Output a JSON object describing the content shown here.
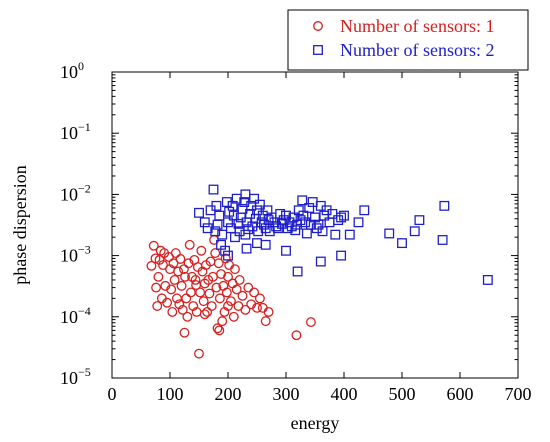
{
  "chart_data": {
    "type": "scatter",
    "xlabel": "energy",
    "ylabel": "phase dispersion",
    "xlim": [
      0,
      700
    ],
    "ylim": [
      1e-05,
      1
    ],
    "y_scale": "log",
    "x_ticks": [
      "0",
      "100",
      "200",
      "300",
      "400",
      "500",
      "600",
      "700"
    ],
    "x_tick_values": [
      0,
      100,
      200,
      300,
      400,
      500,
      600,
      700
    ],
    "y_ticks": [
      {
        "base": "10",
        "exp": "0",
        "value": 1
      },
      {
        "base": "10",
        "exp": "−1",
        "value": 0.1
      },
      {
        "base": "10",
        "exp": "−2",
        "value": 0.01
      },
      {
        "base": "10",
        "exp": "−3",
        "value": 0.001
      },
      {
        "base": "10",
        "exp": "−4",
        "value": 0.0001
      },
      {
        "base": "10",
        "exp": "−5",
        "value": 1e-05
      }
    ],
    "grid": false,
    "legend_position": "top-right",
    "series": [
      {
        "name": "Number of sensors: 1",
        "color": "#d62020",
        "marker": "circle",
        "points": [
          [
            68,
            0.00068
          ],
          [
            72,
            0.00145
          ],
          [
            75,
            0.0009
          ],
          [
            76,
            0.0003
          ],
          [
            78,
            0.00015
          ],
          [
            80,
            0.00045
          ],
          [
            82,
            0.00085
          ],
          [
            84,
            0.0012
          ],
          [
            86,
            0.0002
          ],
          [
            88,
            0.0007
          ],
          [
            90,
            0.0011
          ],
          [
            92,
            0.00032
          ],
          [
            95,
            0.00017
          ],
          [
            98,
            0.00095
          ],
          [
            100,
            0.0006
          ],
          [
            102,
            0.00028
          ],
          [
            104,
            0.00012
          ],
          [
            106,
            0.00075
          ],
          [
            108,
            0.0004
          ],
          [
            110,
            0.0011
          ],
          [
            112,
            0.0002
          ],
          [
            114,
            0.00055
          ],
          [
            116,
            0.00016
          ],
          [
            118,
            0.00088
          ],
          [
            120,
            0.00032
          ],
          [
            122,
            0.00013
          ],
          [
            124,
            0.0006
          ],
          [
            126,
            0.00045
          ],
          [
            128,
            0.0002
          ],
          [
            130,
            0.0001
          ],
          [
            125,
            5.5e-05
          ],
          [
            132,
            0.00075
          ],
          [
            134,
            0.0015
          ],
          [
            136,
            0.00025
          ],
          [
            138,
            0.00045
          ],
          [
            140,
            0.00015
          ],
          [
            142,
            0.00085
          ],
          [
            144,
            0.0004
          ],
          [
            146,
            0.00012
          ],
          [
            148,
            0.00065
          ],
          [
            150,
            2.5e-05
          ],
          [
            152,
            0.00025
          ],
          [
            154,
            0.0012
          ],
          [
            156,
            0.00055
          ],
          [
            158,
            0.00018
          ],
          [
            160,
            0.00035
          ],
          [
            162,
            0.0007
          ],
          [
            164,
            0.00012
          ],
          [
            166,
            0.0004
          ],
          [
            168,
            0.00024
          ],
          [
            170,
            0.0008
          ],
          [
            172,
            0.00015
          ],
          [
            174,
            0.00045
          ],
          [
            176,
            0.0018
          ],
          [
            178,
            0.0011
          ],
          [
            180,
            0.0003
          ],
          [
            182,
            6.5e-05
          ],
          [
            184,
            0.00075
          ],
          [
            186,
            0.0002
          ],
          [
            188,
            0.0005
          ],
          [
            190,
            8.5e-05
          ],
          [
            192,
            0.00032
          ],
          [
            194,
            0.00012
          ],
          [
            196,
            0.0009
          ],
          [
            198,
            0.00025
          ],
          [
            200,
            0.00045
          ],
          [
            202,
            0.0007
          ],
          [
            205,
            0.00018
          ],
          [
            208,
            0.00035
          ],
          [
            210,
            0.0001
          ],
          [
            212,
            0.0006
          ],
          [
            215,
            0.00028
          ],
          [
            218,
            0.00015
          ],
          [
            220,
            0.0004
          ],
          [
            225,
            0.00022
          ],
          [
            230,
            0.00013
          ],
          [
            235,
            0.0003
          ],
          [
            240,
            0.00016
          ],
          [
            245,
            0.00025
          ],
          [
            250,
            0.00014
          ],
          [
            255,
            0.0002
          ],
          [
            260,
            0.00014
          ],
          [
            265,
            8.5e-05
          ],
          [
            270,
            0.00012
          ],
          [
            318,
            5e-05
          ],
          [
            343,
            8.2e-05
          ],
          [
            160,
            0.00011
          ],
          [
            185,
            6e-05
          ],
          [
            200,
            0.00015
          ],
          [
            145,
            0.00033
          ]
        ]
      },
      {
        "name": "Number of sensors: 2",
        "color": "#2020c8",
        "marker": "square",
        "points": [
          [
            150,
            0.005
          ],
          [
            160,
            0.0035
          ],
          [
            165,
            0.0028
          ],
          [
            170,
            0.0055
          ],
          [
            175,
            0.012
          ],
          [
            178,
            0.0025
          ],
          [
            180,
            0.0065
          ],
          [
            182,
            0.0032
          ],
          [
            185,
            0.0045
          ],
          [
            188,
            0.0015
          ],
          [
            190,
            0.0022
          ],
          [
            195,
            0.0012
          ],
          [
            198,
            0.0075
          ],
          [
            200,
            0.0035
          ],
          [
            202,
            0.0052
          ],
          [
            205,
            0.0028
          ],
          [
            208,
            0.0065
          ],
          [
            210,
            0.0045
          ],
          [
            212,
            0.002
          ],
          [
            215,
            0.0085
          ],
          [
            218,
            0.0033
          ],
          [
            220,
            0.0025
          ],
          [
            222,
            0.0042
          ],
          [
            225,
            0.0058
          ],
          [
            228,
            0.0075
          ],
          [
            230,
            0.01
          ],
          [
            232,
            0.0035
          ],
          [
            235,
            0.0027
          ],
          [
            238,
            0.0048
          ],
          [
            240,
            0.0065
          ],
          [
            242,
            0.003
          ],
          [
            245,
            0.0085
          ],
          [
            248,
            0.004
          ],
          [
            250,
            0.0055
          ],
          [
            252,
            0.0025
          ],
          [
            255,
            0.0068
          ],
          [
            258,
            0.0035
          ],
          [
            260,
            0.0045
          ],
          [
            262,
            0.0032
          ],
          [
            265,
            0.0028
          ],
          [
            268,
            0.0055
          ],
          [
            270,
            0.0038
          ],
          [
            272,
            0.0025
          ],
          [
            275,
            0.0042
          ],
          [
            280,
            0.0035
          ],
          [
            283,
            0.003
          ],
          [
            286,
            0.0028
          ],
          [
            290,
            0.0048
          ],
          [
            293,
            0.0033
          ],
          [
            296,
            0.0038
          ],
          [
            300,
            0.0045
          ],
          [
            303,
            0.0028
          ],
          [
            306,
            0.0035
          ],
          [
            310,
            0.003
          ],
          [
            313,
            0.0042
          ],
          [
            316,
            0.0026
          ],
          [
            319,
            0.0032
          ],
          [
            322,
            0.0055
          ],
          [
            325,
            0.0038
          ],
          [
            328,
            0.008
          ],
          [
            330,
            0.0045
          ],
          [
            333,
            0.0035
          ],
          [
            336,
            0.0023
          ],
          [
            340,
            0.006
          ],
          [
            343,
            0.0032
          ],
          [
            346,
            0.0075
          ],
          [
            350,
            0.0042
          ],
          [
            353,
            0.0028
          ],
          [
            356,
            0.0032
          ],
          [
            360,
            0.0065
          ],
          [
            363,
            0.0025
          ],
          [
            366,
            0.0045
          ],
          [
            370,
            0.0055
          ],
          [
            375,
            0.0035
          ],
          [
            380,
            0.0048
          ],
          [
            385,
            0.0022
          ],
          [
            390,
            0.0038
          ],
          [
            395,
            0.0042
          ],
          [
            400,
            0.0045
          ],
          [
            410,
            0.0022
          ],
          [
            425,
            0.0035
          ],
          [
            435,
            0.0055
          ],
          [
            200,
            0.001
          ],
          [
            232,
            0.0013
          ],
          [
            265,
            0.0015
          ],
          [
            300,
            0.0012
          ],
          [
            320,
            0.00055
          ],
          [
            360,
            0.0008
          ],
          [
            395,
            0.001
          ],
          [
            478,
            0.0023
          ],
          [
            500,
            0.0016
          ],
          [
            522,
            0.0025
          ],
          [
            530,
            0.0038
          ],
          [
            570,
            0.0018
          ],
          [
            573,
            0.0065
          ],
          [
            648,
            0.0004
          ],
          [
            230,
            0.0022
          ],
          [
            250,
            0.0016
          ]
        ]
      }
    ]
  }
}
